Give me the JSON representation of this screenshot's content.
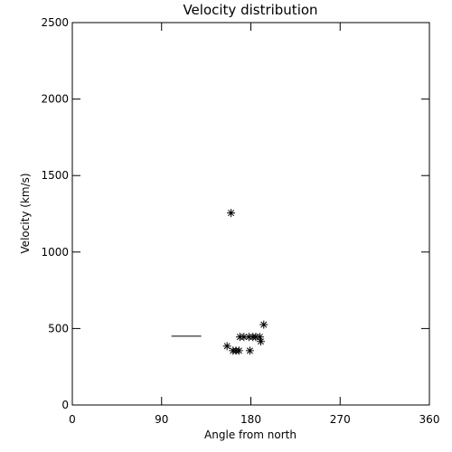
{
  "chart_data": {
    "type": "scatter",
    "title": "Velocity distribution",
    "xlabel": "Angle from north",
    "ylabel": "Velocity (km/s)",
    "xlim": [
      0,
      360
    ],
    "xticks": [
      0,
      90,
      180,
      270,
      360
    ],
    "ylim": [
      0,
      2500
    ],
    "yticks": [
      0,
      500,
      1000,
      1500,
      2000,
      2500
    ],
    "color": "#000000",
    "series": [
      {
        "marker": "asterisk",
        "x": [
          160,
          193,
          156,
          162,
          165,
          168,
          179,
          169,
          173,
          178,
          182,
          185,
          189,
          190
        ],
        "y": [
          1255,
          525,
          385,
          355,
          355,
          355,
          355,
          445,
          445,
          445,
          445,
          445,
          445,
          415
        ]
      },
      {
        "marker": "line",
        "x": [
          100,
          130
        ],
        "y": [
          450,
          450
        ]
      }
    ]
  }
}
